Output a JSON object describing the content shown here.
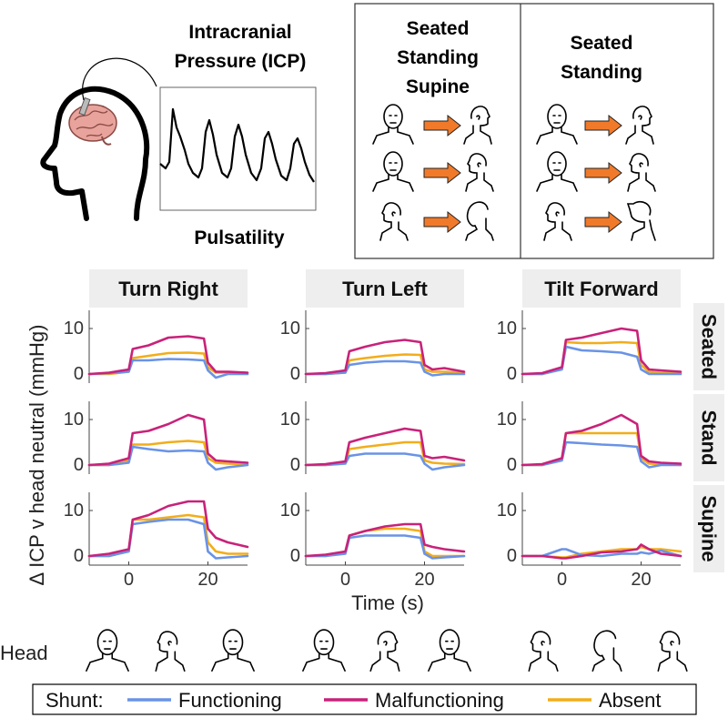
{
  "header": {
    "icp_title_line1": "Intracranial",
    "icp_title_line2": "Pressure (ICP)",
    "pulsatility_label": "Pulsatility",
    "box1_lines": [
      "Seated",
      "Standing",
      "Supine"
    ],
    "box2_lines": [
      "Seated",
      "Standing"
    ]
  },
  "colors": {
    "functioning": "#6a93e6",
    "malfunctioning": "#c8227a",
    "absent": "#f2ad1a",
    "arrow": "#f07a2a",
    "panel_bg": "#eeeeee"
  },
  "chart_data": {
    "type": "line",
    "columns": [
      "Turn Right",
      "Turn Left",
      "Tilt Forward"
    ],
    "rows": [
      "Seated",
      "Stand",
      "Supine"
    ],
    "ylabel": "Δ ICP v head neutral (mmHg)",
    "xlabel": "Time (s)",
    "xlim": [
      -10,
      30
    ],
    "ylim": [
      -2,
      14
    ],
    "x_ticks": [
      0,
      20
    ],
    "y_ticks": [
      0,
      10
    ],
    "legend": {
      "title": "Shunt:",
      "placement": "bottom",
      "entries": [
        "Functioning",
        "Malfunctioning",
        "Absent"
      ]
    },
    "series_names": [
      "Functioning",
      "Malfunctioning",
      "Absent"
    ],
    "x": [
      -10,
      -5,
      0,
      1,
      5,
      10,
      15,
      19,
      20,
      22,
      25,
      30
    ],
    "panels": [
      {
        "row": "Seated",
        "col": "Turn Right",
        "series": [
          {
            "name": "Functioning",
            "values": [
              0,
              0.2,
              0.5,
              3.0,
              3.0,
              3.3,
              3.2,
              3.0,
              0.8,
              -0.8,
              0,
              0
            ]
          },
          {
            "name": "Malfunctioning",
            "values": [
              0,
              0.3,
              1.0,
              5.5,
              6.3,
              8.0,
              8.3,
              7.8,
              2.5,
              0.5,
              0.5,
              0.3
            ]
          },
          {
            "name": "Absent",
            "values": [
              0,
              0,
              0.5,
              3.5,
              4.0,
              4.6,
              4.7,
              4.5,
              1.5,
              0.3,
              0.3,
              0.2
            ]
          }
        ]
      },
      {
        "row": "Seated",
        "col": "Turn Left",
        "series": [
          {
            "name": "Functioning",
            "values": [
              0,
              0,
              0.3,
              2.0,
              2.5,
              2.8,
              2.8,
              2.5,
              0.5,
              -0.3,
              0,
              0
            ]
          },
          {
            "name": "Malfunctioning",
            "values": [
              0,
              0.2,
              0.8,
              5.0,
              6.0,
              7.0,
              7.5,
              7.0,
              2.0,
              1.0,
              1.3,
              0.5
            ]
          },
          {
            "name": "Absent",
            "values": [
              0,
              0,
              0.3,
              3.0,
              3.5,
              4.0,
              4.3,
              4.2,
              1.0,
              0.5,
              0.5,
              0.3
            ]
          }
        ]
      },
      {
        "row": "Seated",
        "col": "Tilt Forward",
        "series": [
          {
            "name": "Functioning",
            "values": [
              0,
              0,
              1.0,
              6.0,
              5.2,
              5.0,
              4.7,
              3.8,
              1.0,
              0,
              0,
              0
            ]
          },
          {
            "name": "Malfunctioning",
            "values": [
              0,
              0.2,
              1.5,
              7.5,
              8.0,
              9.0,
              10.0,
              9.5,
              3.0,
              1.0,
              0.8,
              0.5
            ]
          },
          {
            "name": "Absent",
            "values": [
              0,
              0,
              1.2,
              7.0,
              6.8,
              6.8,
              7.0,
              6.8,
              2.0,
              0.5,
              0.3,
              0.2
            ]
          }
        ]
      },
      {
        "row": "Stand",
        "col": "Turn Right",
        "series": [
          {
            "name": "Functioning",
            "values": [
              0,
              0,
              0.5,
              4.0,
              3.5,
              3.0,
              3.2,
              3.0,
              0.5,
              -1.0,
              -0.5,
              0
            ]
          },
          {
            "name": "Malfunctioning",
            "values": [
              0,
              0.3,
              1.5,
              7.0,
              7.5,
              9.0,
              11.0,
              10.0,
              2.5,
              1.0,
              0.8,
              0.5
            ]
          },
          {
            "name": "Absent",
            "values": [
              0,
              0,
              1.0,
              4.5,
              4.5,
              5.0,
              5.3,
              5.0,
              1.5,
              0.5,
              0.3,
              0.2
            ]
          }
        ]
      },
      {
        "row": "Stand",
        "col": "Turn Left",
        "series": [
          {
            "name": "Functioning",
            "values": [
              0,
              0,
              0.3,
              2.0,
              2.5,
              2.5,
              2.5,
              2.0,
              0.3,
              -1.0,
              -0.5,
              0
            ]
          },
          {
            "name": "Malfunctioning",
            "values": [
              0,
              0.2,
              0.8,
              5.0,
              6.0,
              7.0,
              8.0,
              7.5,
              2.0,
              1.5,
              1.8,
              1.0
            ]
          },
          {
            "name": "Absent",
            "values": [
              0,
              0,
              0.5,
              3.5,
              4.0,
              4.5,
              5.0,
              5.0,
              1.0,
              0.5,
              0.3,
              0.2
            ]
          }
        ]
      },
      {
        "row": "Stand",
        "col": "Tilt Forward",
        "series": [
          {
            "name": "Functioning",
            "values": [
              0,
              0,
              1.0,
              5.0,
              4.8,
              4.5,
              4.3,
              4.0,
              0.8,
              -0.5,
              0,
              0
            ]
          },
          {
            "name": "Malfunctioning",
            "values": [
              0,
              0.2,
              1.5,
              7.0,
              7.5,
              9.0,
              11.0,
              9.0,
              2.0,
              0.8,
              0.5,
              0.3
            ]
          },
          {
            "name": "Absent",
            "values": [
              0,
              0,
              1.2,
              7.0,
              7.0,
              7.0,
              7.0,
              7.0,
              1.5,
              0.3,
              0.2,
              0
            ]
          }
        ]
      },
      {
        "row": "Supine",
        "col": "Turn Right",
        "series": [
          {
            "name": "Functioning",
            "values": [
              0,
              0,
              1.0,
              7.0,
              7.5,
              8.0,
              8.0,
              7.0,
              1.0,
              -0.5,
              -0.3,
              0
            ]
          },
          {
            "name": "Malfunctioning",
            "values": [
              0,
              0.5,
              1.5,
              8.0,
              9.0,
              11.0,
              12.0,
              12.0,
              6.0,
              4.0,
              3.0,
              2.0
            ]
          },
          {
            "name": "Absent",
            "values": [
              0,
              0,
              1.2,
              8.0,
              8.0,
              8.5,
              9.0,
              8.5,
              3.0,
              1.0,
              0.5,
              0.5
            ]
          }
        ]
      },
      {
        "row": "Supine",
        "col": "Turn Left",
        "series": [
          {
            "name": "Functioning",
            "values": [
              0,
              0,
              0.5,
              4.0,
              4.5,
              4.5,
              4.5,
              4.0,
              0.5,
              -0.5,
              -0.3,
              0
            ]
          },
          {
            "name": "Malfunctioning",
            "values": [
              0,
              0.3,
              1.0,
              4.5,
              5.5,
              6.5,
              7.0,
              7.0,
              2.5,
              2.0,
              1.5,
              1.0
            ]
          },
          {
            "name": "Absent",
            "values": [
              0,
              0,
              0.8,
              4.5,
              5.5,
              6.0,
              6.0,
              5.5,
              1.0,
              0,
              0,
              0
            ]
          }
        ]
      },
      {
        "row": "Supine",
        "col": "Tilt Forward",
        "series": [
          {
            "name": "Functioning",
            "values": [
              0,
              0,
              1.5,
              1.5,
              0.2,
              0,
              0.5,
              0.5,
              0.8,
              0.5,
              1.2,
              0
            ]
          },
          {
            "name": "Malfunctioning",
            "values": [
              0,
              0,
              -0.5,
              -0.5,
              0,
              0.8,
              1.0,
              1.5,
              2.5,
              1.5,
              0.5,
              0
            ]
          },
          {
            "name": "Absent",
            "values": [
              0,
              0,
              -0.3,
              -0.3,
              0.5,
              1.0,
              1.5,
              1.5,
              2.0,
              1.5,
              1.5,
              1.0
            ]
          }
        ]
      }
    ]
  },
  "footer": {
    "head_label": "Head"
  }
}
